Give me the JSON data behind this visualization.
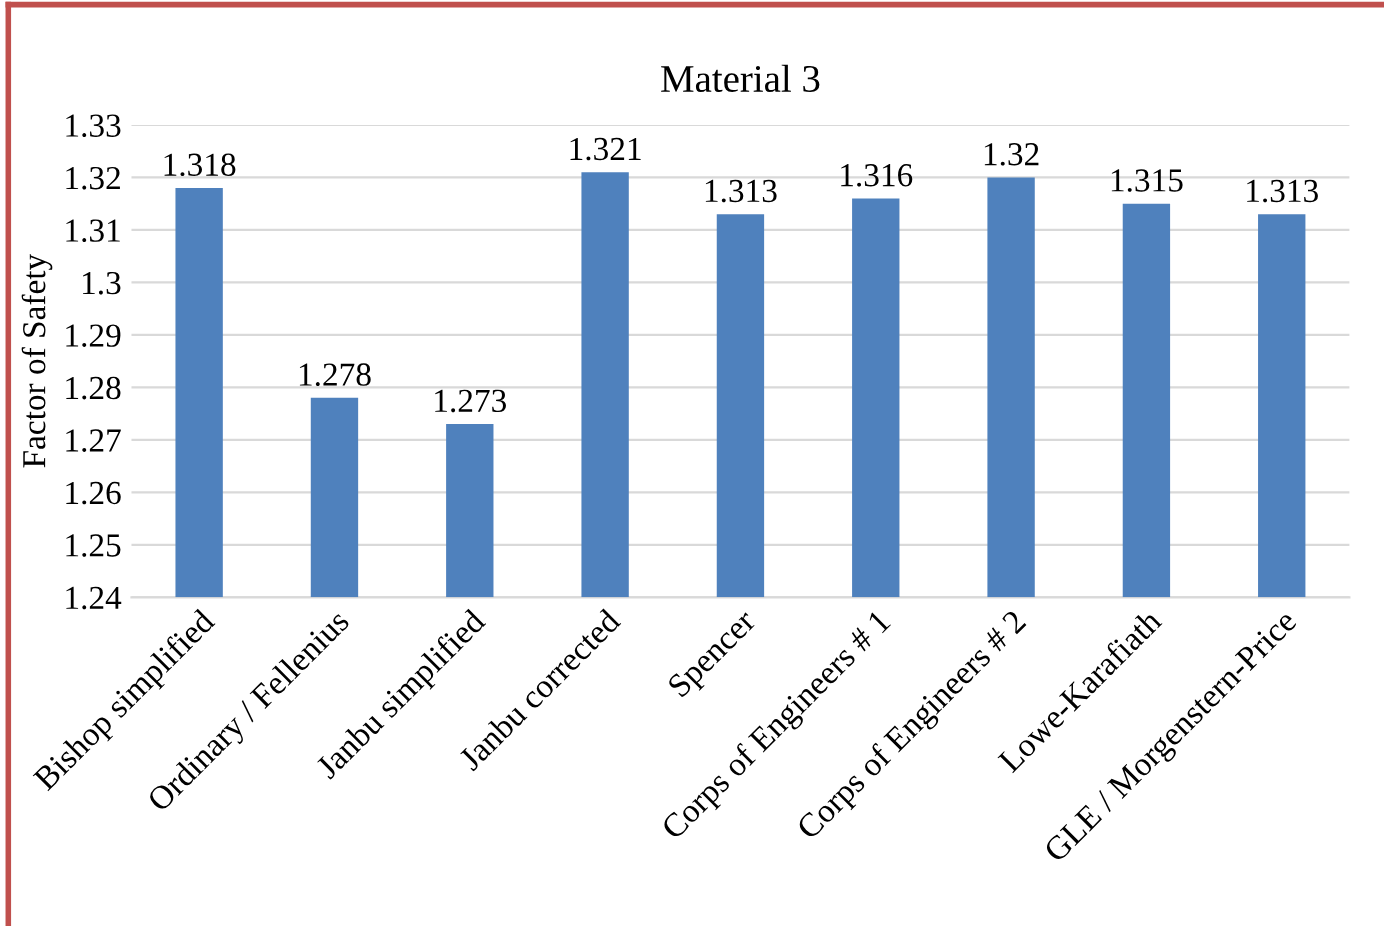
{
  "chart_data": {
    "type": "bar",
    "title": "Material 3",
    "ylabel": "Factor of Safety",
    "categories": [
      "Bishop simplified",
      "Ordinary / Fellenius",
      "Janbu simplified",
      "Janbu corrected",
      "Spencer",
      "Corps of Engineers # 1",
      "Corps of Engineers # 2",
      "Lowe-Karafiath",
      "GLE / Morgenstern-Price"
    ],
    "values": [
      1.318,
      1.278,
      1.273,
      1.321,
      1.313,
      1.316,
      1.32,
      1.315,
      1.313
    ],
    "color": "#4f81bd",
    "ylim": [
      1.24,
      1.33
    ],
    "yticks": [
      1.24,
      1.25,
      1.26,
      1.27,
      1.28,
      1.29,
      1.3,
      1.31,
      1.32,
      1.33
    ],
    "grid": "y",
    "data_labels": true
  }
}
